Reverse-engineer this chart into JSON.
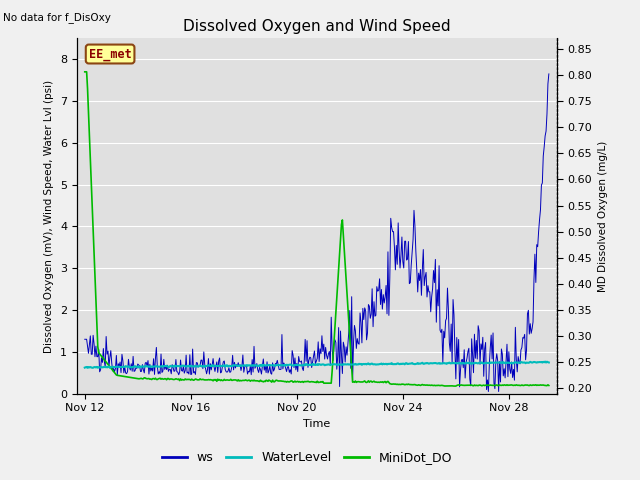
{
  "title": "Dissolved Oxygen and Wind Speed",
  "no_data_label": "No data for f_DisOxy",
  "ee_met_label": "EE_met",
  "ylabel_left": "Dissolved Oxygen (mV), Wind Speed, Water Lvl (psi)",
  "ylabel_right": "MD Dissolved Oxygen (mg/L)",
  "xlabel": "Time",
  "ylim_left": [
    0.0,
    8.5
  ],
  "ylim_right": [
    0.19,
    0.87
  ],
  "yticks_left": [
    0.0,
    1.0,
    2.0,
    3.0,
    4.0,
    5.0,
    6.0,
    7.0,
    8.0
  ],
  "yticks_right": [
    0.2,
    0.25,
    0.3,
    0.35,
    0.4,
    0.45,
    0.5,
    0.55,
    0.6,
    0.65,
    0.7,
    0.75,
    0.8,
    0.85
  ],
  "xtick_labels": [
    "Nov 12",
    "Nov 16",
    "Nov 20",
    "Nov 24",
    "Nov 28"
  ],
  "xtick_positions": [
    0,
    4,
    8,
    12,
    16
  ],
  "xlim": [
    -0.3,
    17.8
  ],
  "fig_background": "#f0f0f0",
  "plot_background": "#e0e0e0",
  "ws_color": "#0000bb",
  "water_level_color": "#00bbbb",
  "minidot_color": "#00bb00",
  "legend_labels": [
    "ws",
    "WaterLevel",
    "MiniDot_DO"
  ],
  "title_fontsize": 11,
  "label_fontsize": 7.5,
  "tick_fontsize": 8
}
